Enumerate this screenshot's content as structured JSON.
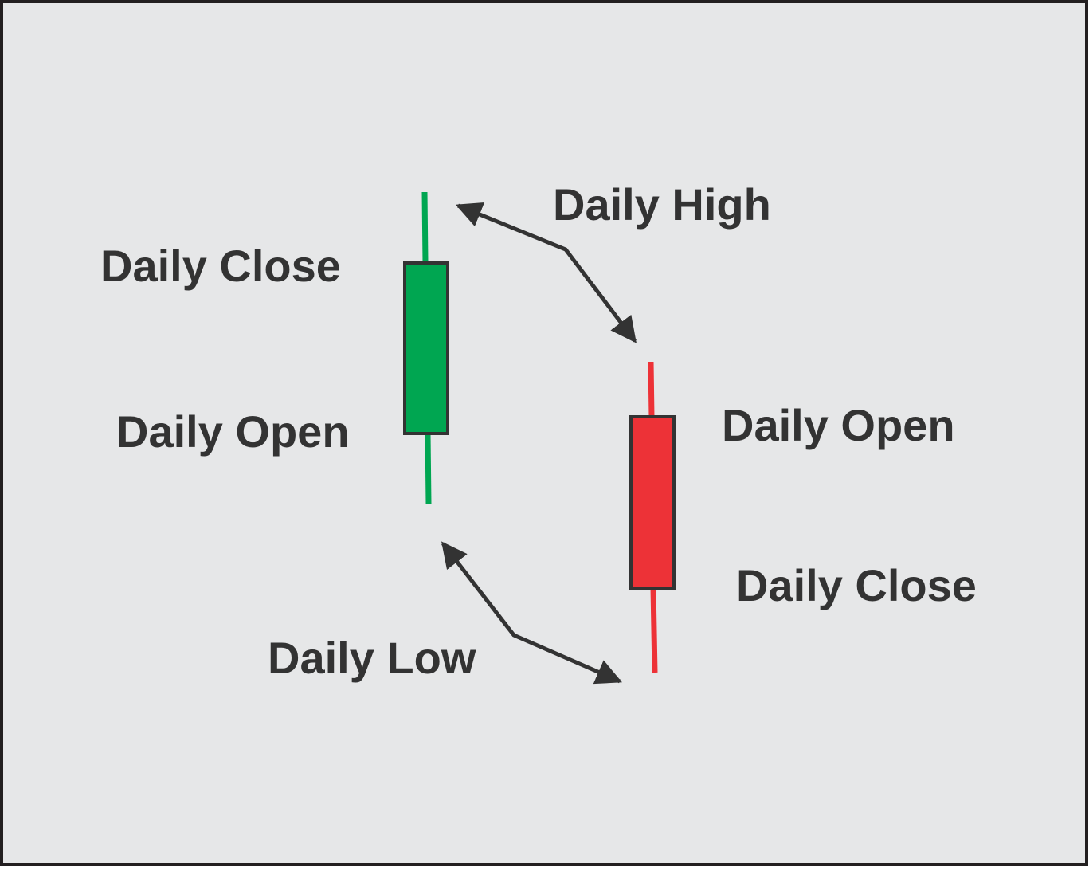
{
  "colors": {
    "background": "#e6e7e8",
    "border": "#231f20",
    "bullish": "#00a651",
    "bearish": "#ed3237",
    "outline": "#333333",
    "label": "#333333"
  },
  "labels": {
    "bullish_close": "Daily Close",
    "bullish_open": "Daily Open",
    "high": "Daily High",
    "low": "Daily Low",
    "bearish_open": "Daily Open",
    "bearish_close": "Daily Close"
  },
  "candles": [
    {
      "name": "bullish-candle",
      "direction": "up",
      "open": "Daily Open",
      "close": "Daily Close"
    },
    {
      "name": "bearish-candle",
      "direction": "down",
      "open": "Daily Open",
      "close": "Daily Close"
    }
  ],
  "arrows": [
    {
      "name": "high-arrow",
      "label": "Daily High",
      "points_to": [
        "bullish-candle high",
        "bearish-candle high"
      ]
    },
    {
      "name": "low-arrow",
      "label": "Daily Low",
      "points_to": [
        "bullish-candle low",
        "bearish-candle low"
      ]
    }
  ]
}
